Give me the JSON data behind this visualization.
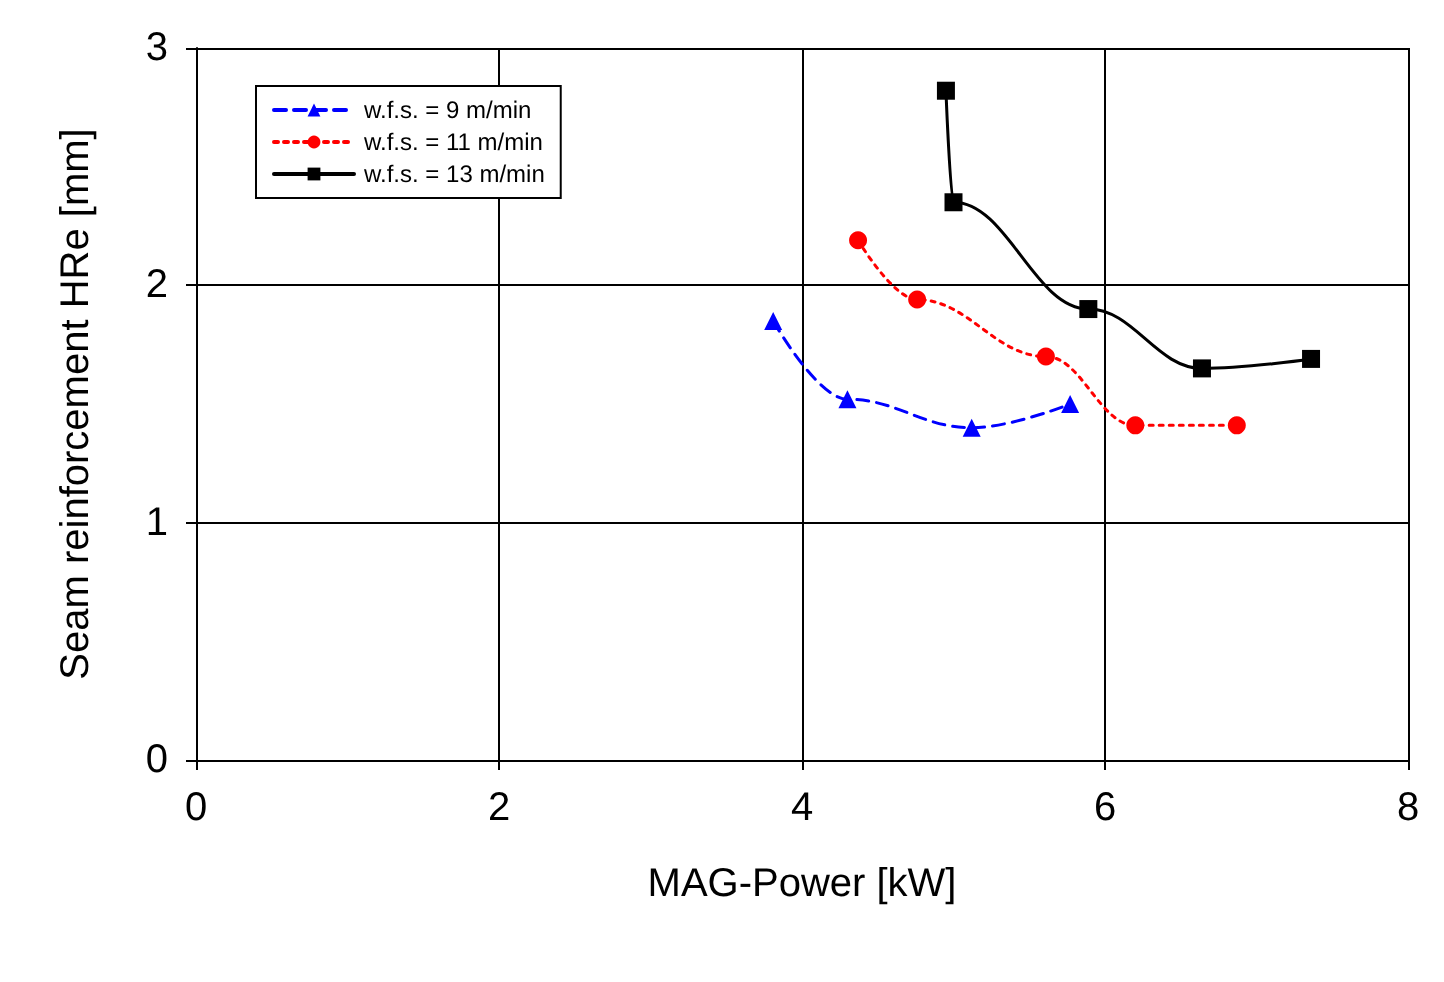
{
  "chart_data": {
    "type": "line",
    "xlabel": "MAG-Power [kW]",
    "ylabel": "Seam reinforcement HRe [mm]",
    "xlim": [
      0,
      8
    ],
    "xticks": [
      0,
      2,
      4,
      6,
      8
    ],
    "ylim": [
      0,
      3
    ],
    "yticks": [
      0,
      1,
      2,
      3
    ],
    "grid": true,
    "legend": "top left",
    "series": [
      {
        "name": "w.f.s. = 9 m/min",
        "color": "#0000ff",
        "marker": "triangle",
        "line_style": "dashed",
        "x": [
          3.81,
          4.3,
          5.12,
          5.77
        ],
        "values": [
          1.85,
          1.52,
          1.4,
          1.5
        ]
      },
      {
        "name": "w.f.s. = 11 m/min",
        "color": "#ff0000",
        "marker": "circle",
        "line_style": "dotted",
        "x": [
          4.37,
          4.76,
          5.61,
          6.2,
          6.87
        ],
        "values": [
          2.19,
          1.94,
          1.7,
          1.41,
          1.41
        ]
      },
      {
        "name": "w.f.s. = 13 m/min",
        "color": "#000000",
        "marker": "square",
        "line_style": "solid",
        "x": [
          4.95,
          5.0,
          5.89,
          6.64,
          7.36
        ],
        "values": [
          2.82,
          2.35,
          1.9,
          1.65,
          1.69
        ]
      }
    ]
  }
}
